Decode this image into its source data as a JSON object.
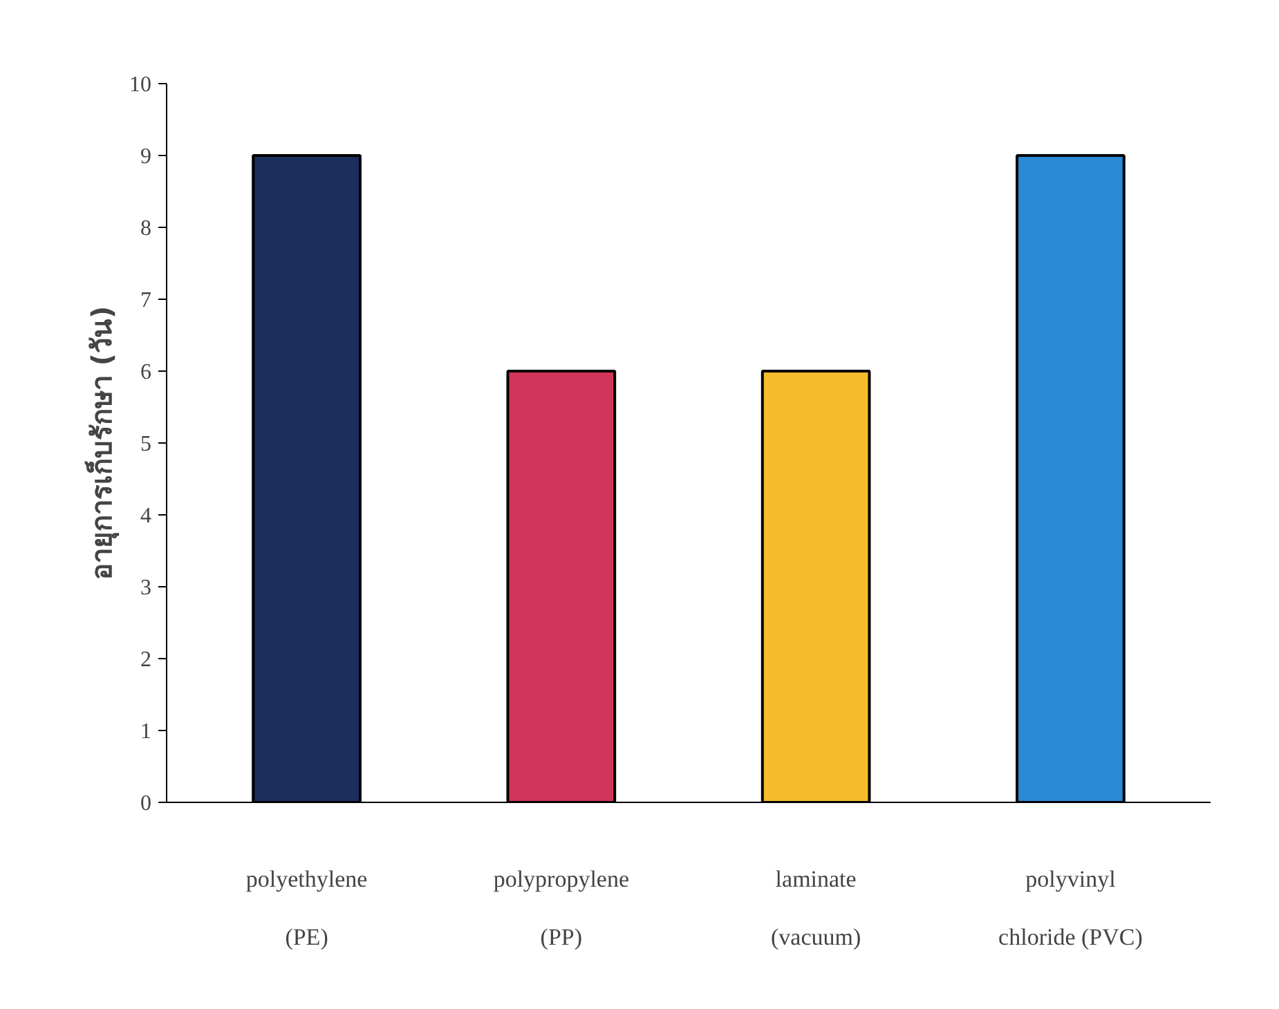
{
  "chart_data": {
    "type": "bar",
    "ylabel": "อายุการเก็บรักษา (วัน)",
    "categories": [
      "polyethylene (PE)",
      "polypropylene (PP)",
      "laminate (vacuum)",
      "polyvinyl chloride (PVC)"
    ],
    "values": [
      9,
      6,
      6,
      9
    ],
    "colors": [
      "#1b2f5c",
      "#d2355a",
      "#f6bb2c",
      "#2b8ad6"
    ],
    "ylim": [
      0,
      10
    ],
    "yticks": [
      0,
      1,
      2,
      3,
      4,
      5,
      6,
      7,
      8,
      9,
      10
    ],
    "grid": false
  }
}
